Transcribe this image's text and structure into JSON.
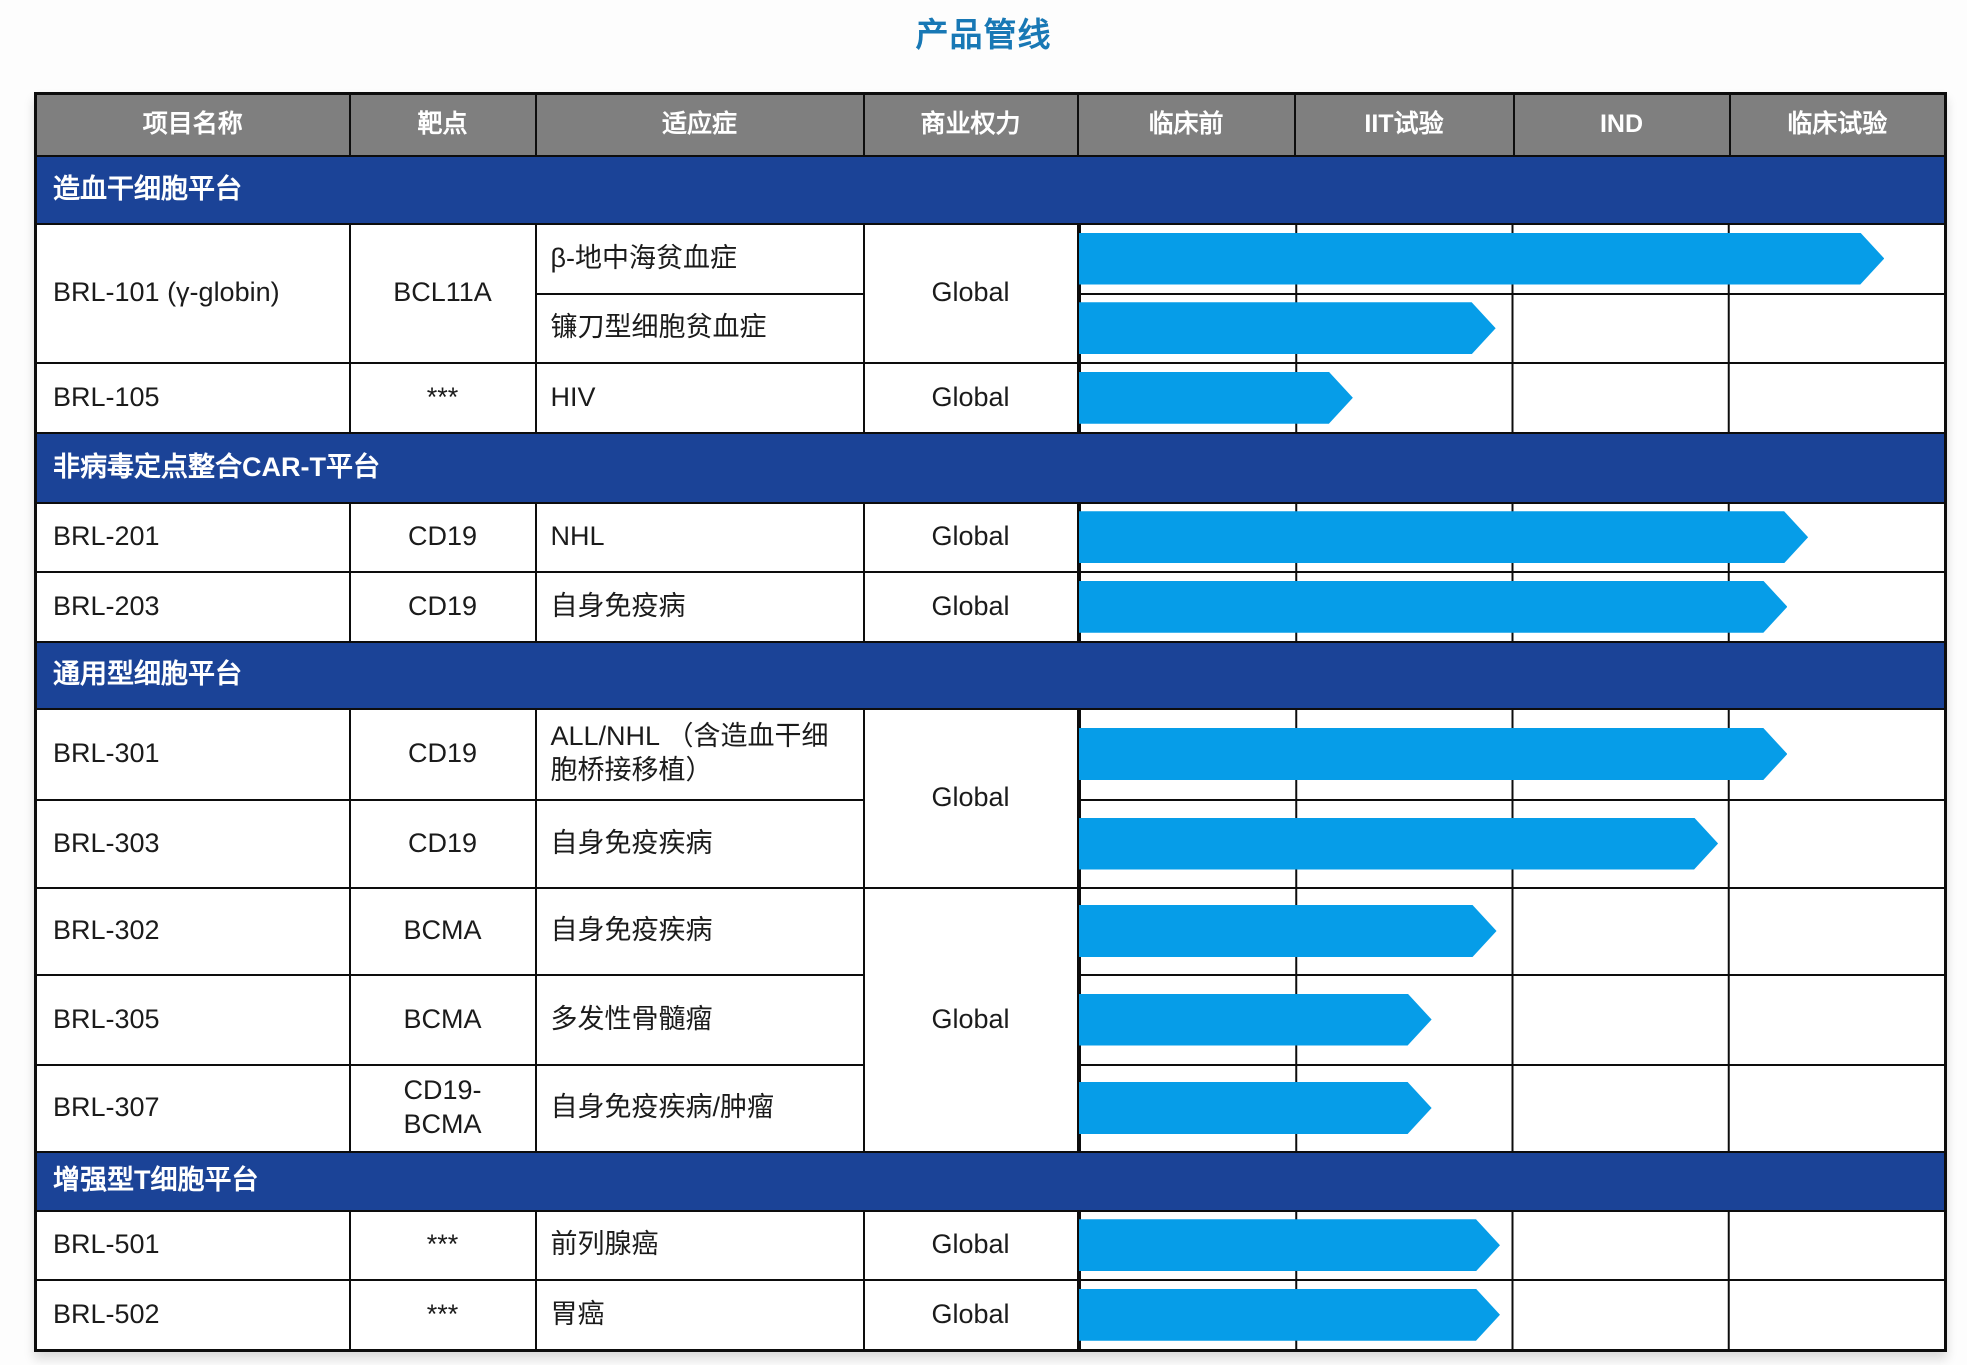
{
  "page": {
    "title": "产品管线"
  },
  "colors": {
    "header_bg": "#7f7f7f",
    "section_bg": "#1b4397",
    "arrow": "#069de8",
    "border": "#0d0d0d",
    "title": "#1878b5",
    "text": "#1b1b1b"
  },
  "table": {
    "columns": [
      "项目名称",
      "靶点",
      "适应症",
      "商业权力",
      "临床前",
      "IIT试验",
      "IND",
      "临床试验"
    ]
  },
  "chart_data": {
    "type": "gantt",
    "title": "产品管线",
    "stage_axis": [
      "临床前",
      "IIT试验",
      "IND",
      "临床试验"
    ],
    "progress_unit": "percent of span from start of 临床前 to end of 临床试验",
    "rows": [
      {
        "type": "section",
        "label": "造血干细胞平台"
      },
      {
        "type": "data",
        "project": "BRL-101 (γ-globin)",
        "target": "BCL11A",
        "indication": "β-地中海贫血症",
        "rights": "Global",
        "progress": 93.1,
        "stage_reached": "临床试验"
      },
      {
        "type": "data",
        "indication": "镰刀型细胞贫血症",
        "progress": 48.2,
        "stage_reached": "IIT试验"
      },
      {
        "type": "data",
        "project": "BRL-105",
        "target": "***",
        "indication": "HIV",
        "rights": "Global",
        "progress": 31.7,
        "stage_reached": "IIT试验"
      },
      {
        "type": "section",
        "label": "非病毒定点整合CAR-T平台"
      },
      {
        "type": "data",
        "project": "BRL-201",
        "target": "CD19",
        "indication": "NHL",
        "rights": "Global",
        "progress": 84.3,
        "stage_reached": "临床试验"
      },
      {
        "type": "data",
        "project": "BRL-203",
        "target": "CD19",
        "indication": "自身免疫病",
        "rights": "Global",
        "progress": 81.9,
        "stage_reached": "临床试验"
      },
      {
        "type": "section",
        "label": "通用型细胞平台"
      },
      {
        "type": "data",
        "project": "BRL-301",
        "target": "CD19",
        "indication": "ALL/NHL （含造血干细胞桥接移植）",
        "rights": "Global",
        "progress": 81.9,
        "stage_reached": "临床试验"
      },
      {
        "type": "data",
        "project": "BRL-303",
        "target": "CD19",
        "indication": "自身免疫疾病",
        "progress": 73.9,
        "stage_reached": "IND"
      },
      {
        "type": "data",
        "project": "BRL-302",
        "target": "BCMA",
        "indication": "自身免疫疾病",
        "rights": "Global",
        "progress": 48.3,
        "stage_reached": "IIT试验"
      },
      {
        "type": "data",
        "project": "BRL-305",
        "target": "BCMA",
        "indication": "多发性骨髓瘤",
        "progress": 40.8,
        "stage_reached": "IIT试验"
      },
      {
        "type": "data",
        "project": "BRL-307",
        "target": "CD19-\nBCMA",
        "indication": "自身免疫疾病/肿瘤",
        "progress": 40.8,
        "stage_reached": "IIT试验"
      },
      {
        "type": "section",
        "label": "增强型T细胞平台"
      },
      {
        "type": "data",
        "project": "BRL-501",
        "target": "***",
        "indication": "前列腺癌",
        "rights": "Global",
        "progress": 48.7,
        "stage_reached": "IIT试验"
      },
      {
        "type": "data",
        "project": "BRL-502",
        "target": "***",
        "indication": "胃癌",
        "rights": "Global",
        "progress": 48.7,
        "stage_reached": "IIT试验"
      }
    ]
  }
}
